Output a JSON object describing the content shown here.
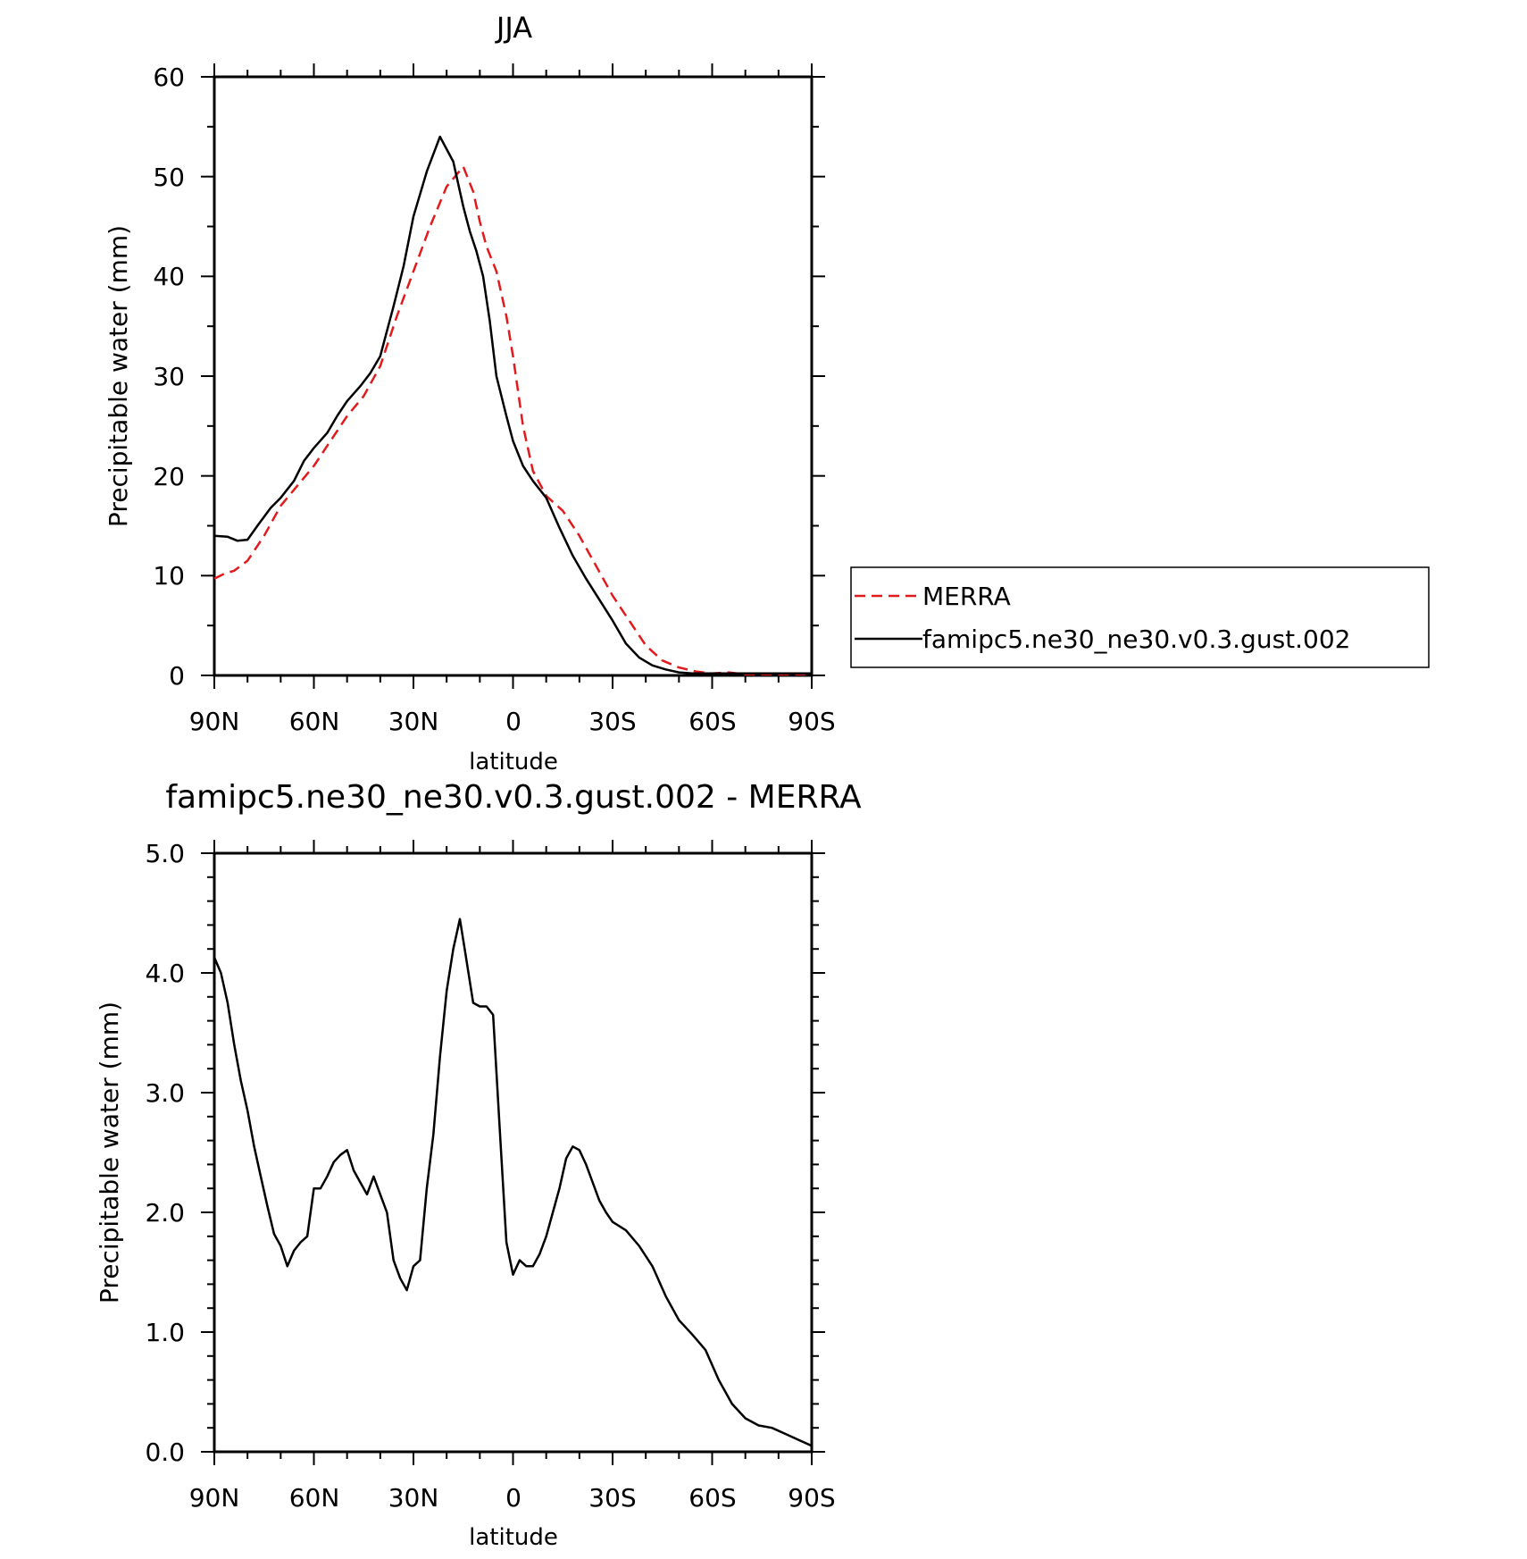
{
  "chart_data": [
    {
      "type": "line",
      "title": "JJA",
      "xlabel": "latitude",
      "ylabel": "Precipitable water (mm)",
      "xlim": [
        90,
        -90
      ],
      "ylim": [
        0,
        60
      ],
      "x_ticks": [
        90,
        60,
        30,
        0,
        -30,
        -60,
        -90
      ],
      "x_tick_labels": [
        "90N",
        "60N",
        "30N",
        "0",
        "30S",
        "60S",
        "90S"
      ],
      "y_ticks": [
        0,
        10,
        20,
        30,
        40,
        50,
        60
      ],
      "y_tick_labels": [
        "0",
        "10",
        "20",
        "30",
        "40",
        "50",
        "60"
      ],
      "legend": {
        "position": "right",
        "entries": [
          "MERRA",
          "famipc5.ne30_ne30.v0.3.gust.002"
        ]
      },
      "series": [
        {
          "name": "MERRA",
          "color": "#e31a1c",
          "dash": true,
          "x": [
            90,
            87,
            84,
            80,
            75,
            70,
            65,
            60,
            55,
            50,
            45,
            40,
            35,
            30,
            25,
            20,
            15,
            12,
            10,
            8,
            5,
            2,
            0,
            -3,
            -6,
            -10,
            -15,
            -20,
            -25,
            -30,
            -35,
            -40,
            -45,
            -50,
            -55,
            -60,
            -65,
            -70,
            -75,
            -80,
            -85,
            -90
          ],
          "values": [
            9.7,
            10.2,
            10.5,
            11.5,
            14.0,
            17.0,
            19.0,
            21.0,
            23.5,
            26.0,
            28.0,
            31.0,
            36.0,
            40.5,
            45.0,
            49.0,
            51.0,
            48.5,
            45.5,
            43.0,
            40.5,
            36.0,
            32.0,
            25.0,
            20.5,
            18.0,
            16.5,
            14.0,
            11.0,
            8.0,
            5.5,
            3.0,
            1.5,
            0.8,
            0.4,
            0.2,
            0.3,
            0.1,
            0.1,
            0.1,
            0.1,
            0.1
          ]
        },
        {
          "name": "famipc5.ne30_ne30.v0.3.gust.002",
          "color": "#000000",
          "dash": false,
          "x": [
            90,
            86,
            83,
            80,
            77,
            73,
            70,
            66,
            63,
            60,
            56,
            53,
            50,
            46,
            43,
            40,
            36,
            33,
            30,
            26,
            22,
            18,
            15,
            13,
            11,
            9,
            7,
            5,
            2,
            0,
            -3,
            -6,
            -10,
            -14,
            -18,
            -22,
            -26,
            -30,
            -34,
            -38,
            -42,
            -46,
            -50,
            -54,
            -58,
            -62,
            -66,
            -70,
            -74,
            -78,
            -82,
            -86,
            -90
          ],
          "values": [
            14.0,
            13.9,
            13.5,
            13.6,
            15.0,
            16.8,
            17.8,
            19.5,
            21.5,
            22.8,
            24.3,
            26.0,
            27.5,
            29.0,
            30.3,
            32.0,
            37.0,
            41.0,
            46.0,
            50.5,
            54.0,
            51.5,
            47.0,
            44.5,
            42.5,
            40.0,
            35.5,
            30.0,
            26.0,
            23.5,
            21.0,
            19.5,
            17.8,
            14.8,
            12.0,
            9.7,
            7.6,
            5.5,
            3.2,
            1.8,
            1.0,
            0.6,
            0.3,
            0.2,
            0.2,
            0.2,
            0.2,
            0.2,
            0.2,
            0.2,
            0.2,
            0.2,
            0.2
          ]
        }
      ]
    },
    {
      "type": "line",
      "title": "famipc5.ne30_ne30.v0.3.gust.002 - MERRA",
      "xlabel": "latitude",
      "ylabel": "Precipitable water (mm)",
      "xlim": [
        90,
        -90
      ],
      "ylim": [
        0,
        5
      ],
      "x_ticks": [
        90,
        60,
        30,
        0,
        -30,
        -60,
        -90
      ],
      "x_tick_labels": [
        "90N",
        "60N",
        "30N",
        "0",
        "30S",
        "60S",
        "90S"
      ],
      "y_ticks": [
        0,
        1,
        2,
        3,
        4,
        5
      ],
      "y_tick_labels": [
        "0.0",
        "1.0",
        "2.0",
        "3.0",
        "4.0",
        "5.0"
      ],
      "series": [
        {
          "name": "famipc5.ne30_ne30.v0.3.gust.002 - MERRA",
          "color": "#000000",
          "dash": false,
          "x": [
            90,
            88,
            86,
            84,
            82,
            80,
            78,
            76,
            74,
            72,
            70,
            68,
            66,
            64,
            62,
            60,
            58,
            56,
            54,
            52,
            50,
            48,
            46,
            44,
            42,
            40,
            38,
            36,
            34,
            32,
            30,
            28,
            26,
            24,
            22,
            20,
            18,
            16,
            14,
            12,
            10,
            8,
            6,
            4,
            2,
            0,
            -2,
            -4,
            -6,
            -8,
            -10,
            -12,
            -14,
            -16,
            -18,
            -20,
            -22,
            -24,
            -26,
            -28,
            -30,
            -34,
            -38,
            -42,
            -46,
            -50,
            -54,
            -58,
            -62,
            -66,
            -70,
            -74,
            -78,
            -82,
            -86,
            -90
          ],
          "values": [
            4.13,
            4.0,
            3.75,
            3.4,
            3.1,
            2.85,
            2.55,
            2.3,
            2.05,
            1.82,
            1.72,
            1.55,
            1.68,
            1.75,
            1.8,
            2.2,
            2.2,
            2.3,
            2.42,
            2.48,
            2.52,
            2.35,
            2.25,
            2.15,
            2.3,
            2.15,
            2.0,
            1.6,
            1.45,
            1.35,
            1.55,
            1.6,
            2.2,
            2.65,
            3.3,
            3.85,
            4.2,
            4.45,
            4.1,
            3.75,
            3.72,
            3.72,
            3.65,
            2.7,
            1.75,
            1.48,
            1.6,
            1.55,
            1.55,
            1.65,
            1.8,
            2.0,
            2.2,
            2.45,
            2.55,
            2.52,
            2.4,
            2.25,
            2.1,
            2.0,
            1.92,
            1.85,
            1.72,
            1.55,
            1.3,
            1.1,
            0.98,
            0.85,
            0.6,
            0.4,
            0.28,
            0.22,
            0.2,
            0.15,
            0.1,
            0.05
          ]
        }
      ]
    }
  ]
}
